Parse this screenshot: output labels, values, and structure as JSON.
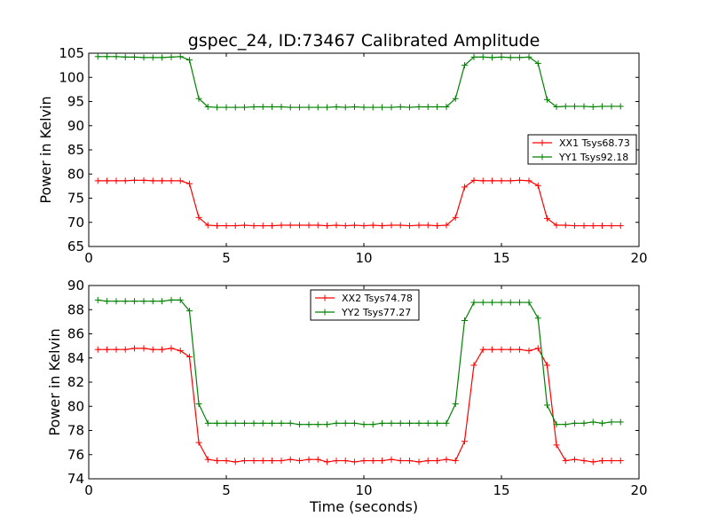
{
  "figure": {
    "title": "gspec_24, ID:73467 Calibrated Amplitude",
    "xlabel": "Time (seconds)"
  },
  "colors": {
    "red": "#ff0000",
    "green": "#008000",
    "axes": "#000000",
    "background": "#ffffff"
  },
  "chart_data": [
    {
      "type": "line",
      "title": "gspec_24, ID:73467 Calibrated Amplitude",
      "xlabel": "",
      "ylabel": "Power in Kelvin",
      "xlim": [
        0,
        20
      ],
      "ylim": [
        65,
        105
      ],
      "xticks": [
        0,
        5,
        10,
        15,
        20
      ],
      "yticks": [
        65,
        70,
        75,
        80,
        85,
        90,
        95,
        100,
        105
      ],
      "grid": false,
      "legend_position": "center-right",
      "x": [
        0.33,
        0.66,
        1.0,
        1.33,
        1.66,
        2.0,
        2.33,
        2.66,
        3.0,
        3.33,
        3.66,
        4.0,
        4.33,
        4.66,
        5.0,
        5.33,
        5.66,
        6.0,
        6.33,
        6.66,
        7.0,
        7.33,
        7.66,
        8.0,
        8.33,
        8.66,
        9.0,
        9.33,
        9.66,
        10.0,
        10.33,
        10.66,
        11.0,
        11.33,
        11.66,
        12.0,
        12.33,
        12.66,
        13.0,
        13.33,
        13.66,
        14.0,
        14.33,
        14.66,
        15.0,
        15.33,
        15.66,
        16.0,
        16.33,
        16.66,
        17.0,
        17.33,
        17.66,
        18.0,
        18.33,
        18.66,
        19.0,
        19.33
      ],
      "series": [
        {
          "name": "XX1 Tsys68.73",
          "color": "#ff0000",
          "values": [
            78.6,
            78.6,
            78.6,
            78.6,
            78.7,
            78.7,
            78.6,
            78.6,
            78.6,
            78.6,
            78.0,
            71.0,
            69.4,
            69.3,
            69.3,
            69.3,
            69.4,
            69.3,
            69.3,
            69.3,
            69.4,
            69.4,
            69.4,
            69.4,
            69.4,
            69.3,
            69.4,
            69.3,
            69.4,
            69.3,
            69.4,
            69.3,
            69.4,
            69.4,
            69.3,
            69.4,
            69.4,
            69.3,
            69.4,
            71.0,
            77.3,
            78.7,
            78.6,
            78.6,
            78.6,
            78.6,
            78.7,
            78.6,
            77.6,
            70.8,
            69.4,
            69.4,
            69.3,
            69.3,
            69.3,
            69.3,
            69.3,
            69.3
          ]
        },
        {
          "name": "YY1 Tsys92.18",
          "color": "#008000",
          "values": [
            104.3,
            104.3,
            104.3,
            104.2,
            104.2,
            104.1,
            104.1,
            104.1,
            104.2,
            104.3,
            103.6,
            95.6,
            93.9,
            93.8,
            93.8,
            93.8,
            93.8,
            93.9,
            93.9,
            93.9,
            93.9,
            93.8,
            93.8,
            93.8,
            93.8,
            93.8,
            93.9,
            93.8,
            93.9,
            93.8,
            93.8,
            93.8,
            93.8,
            93.9,
            93.8,
            93.9,
            93.9,
            93.9,
            93.9,
            95.6,
            102.5,
            104.2,
            104.2,
            104.1,
            104.2,
            104.1,
            104.1,
            104.2,
            102.9,
            95.4,
            93.9,
            94.0,
            94.0,
            94.0,
            93.9,
            94.0,
            94.0,
            94.0
          ]
        }
      ]
    },
    {
      "type": "line",
      "title": "",
      "xlabel": "Time (seconds)",
      "ylabel": "Power in Kelvin",
      "xlim": [
        0,
        20
      ],
      "ylim": [
        74,
        90
      ],
      "xticks": [
        0,
        5,
        10,
        15,
        20
      ],
      "yticks": [
        74,
        76,
        78,
        80,
        82,
        84,
        86,
        88,
        90
      ],
      "grid": false,
      "legend_position": "upper-center",
      "x": [
        0.33,
        0.66,
        1.0,
        1.33,
        1.66,
        2.0,
        2.33,
        2.66,
        3.0,
        3.33,
        3.66,
        4.0,
        4.33,
        4.66,
        5.0,
        5.33,
        5.66,
        6.0,
        6.33,
        6.66,
        7.0,
        7.33,
        7.66,
        8.0,
        8.33,
        8.66,
        9.0,
        9.33,
        9.66,
        10.0,
        10.33,
        10.66,
        11.0,
        11.33,
        11.66,
        12.0,
        12.33,
        12.66,
        13.0,
        13.33,
        13.66,
        14.0,
        14.33,
        14.66,
        15.0,
        15.33,
        15.66,
        16.0,
        16.33,
        16.66,
        17.0,
        17.33,
        17.66,
        18.0,
        18.33,
        18.66,
        19.0,
        19.33
      ],
      "series": [
        {
          "name": "XX2 Tsys74.78",
          "color": "#ff0000",
          "values": [
            84.7,
            84.7,
            84.7,
            84.7,
            84.8,
            84.8,
            84.7,
            84.7,
            84.8,
            84.6,
            84.1,
            77.0,
            75.6,
            75.5,
            75.5,
            75.4,
            75.5,
            75.5,
            75.5,
            75.5,
            75.5,
            75.6,
            75.5,
            75.6,
            75.6,
            75.4,
            75.5,
            75.5,
            75.4,
            75.5,
            75.5,
            75.5,
            75.6,
            75.5,
            75.5,
            75.4,
            75.5,
            75.5,
            75.6,
            75.5,
            77.1,
            83.4,
            84.7,
            84.7,
            84.7,
            84.7,
            84.7,
            84.6,
            84.8,
            83.4,
            76.8,
            75.5,
            75.6,
            75.5,
            75.4,
            75.5,
            75.5,
            75.5
          ]
        },
        {
          "name": "YY2 Tsys77.27",
          "color": "#008000",
          "values": [
            88.8,
            88.7,
            88.7,
            88.7,
            88.7,
            88.7,
            88.7,
            88.7,
            88.8,
            88.8,
            87.9,
            80.2,
            78.6,
            78.6,
            78.6,
            78.6,
            78.6,
            78.6,
            78.6,
            78.6,
            78.6,
            78.6,
            78.5,
            78.5,
            78.5,
            78.5,
            78.6,
            78.6,
            78.6,
            78.5,
            78.5,
            78.6,
            78.6,
            78.6,
            78.6,
            78.6,
            78.6,
            78.6,
            78.6,
            80.2,
            87.1,
            88.6,
            88.6,
            88.6,
            88.6,
            88.6,
            88.6,
            88.6,
            87.3,
            80.1,
            78.5,
            78.5,
            78.6,
            78.6,
            78.7,
            78.6,
            78.7,
            78.7
          ]
        }
      ]
    }
  ]
}
